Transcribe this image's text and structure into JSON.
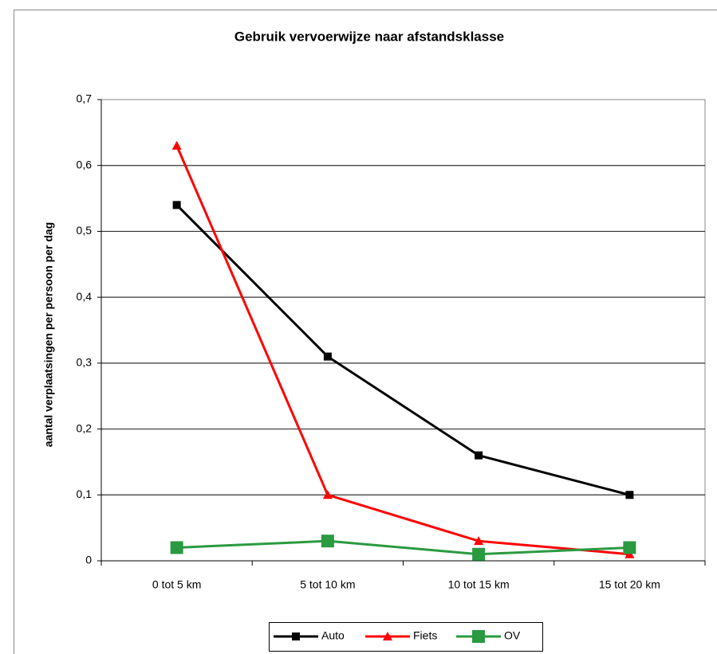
{
  "chart_data": {
    "type": "line",
    "title": "Gebruik vervoerwijze naar afstandsklasse",
    "y_label": "aantal verplaatsingen per persoon per dag",
    "categories": [
      "0 tot 5 km",
      "5 tot 10 km",
      "10 tot 15 km",
      "15 tot 20 km"
    ],
    "series": [
      {
        "name": "Auto",
        "color": "#000000",
        "marker": "square",
        "values": [
          0.54,
          0.31,
          0.16,
          0.1
        ]
      },
      {
        "name": "Fiets",
        "color": "#ff0000",
        "marker": "triangle",
        "values": [
          0.63,
          0.1,
          0.03,
          0.01
        ]
      },
      {
        "name": "OV",
        "color": "#2a9a40",
        "marker": "big-square",
        "values": [
          0.02,
          0.03,
          0.01,
          0.02
        ]
      }
    ],
    "ylim": [
      0,
      0.7
    ],
    "yticks": [
      0,
      {
        "value": 0.1,
        "label": "0,1"
      },
      {
        "value": 0.2,
        "label": "0,2"
      },
      {
        "value": 0.3,
        "label": "0,3"
      },
      {
        "value": 0.4,
        "label": "0,4"
      },
      {
        "value": 0.5,
        "label": "0,5"
      },
      {
        "value": 0.6,
        "label": "0,6"
      },
      {
        "value": 0.7,
        "label": "0,7"
      }
    ],
    "grid": true,
    "legend": "bottom"
  }
}
